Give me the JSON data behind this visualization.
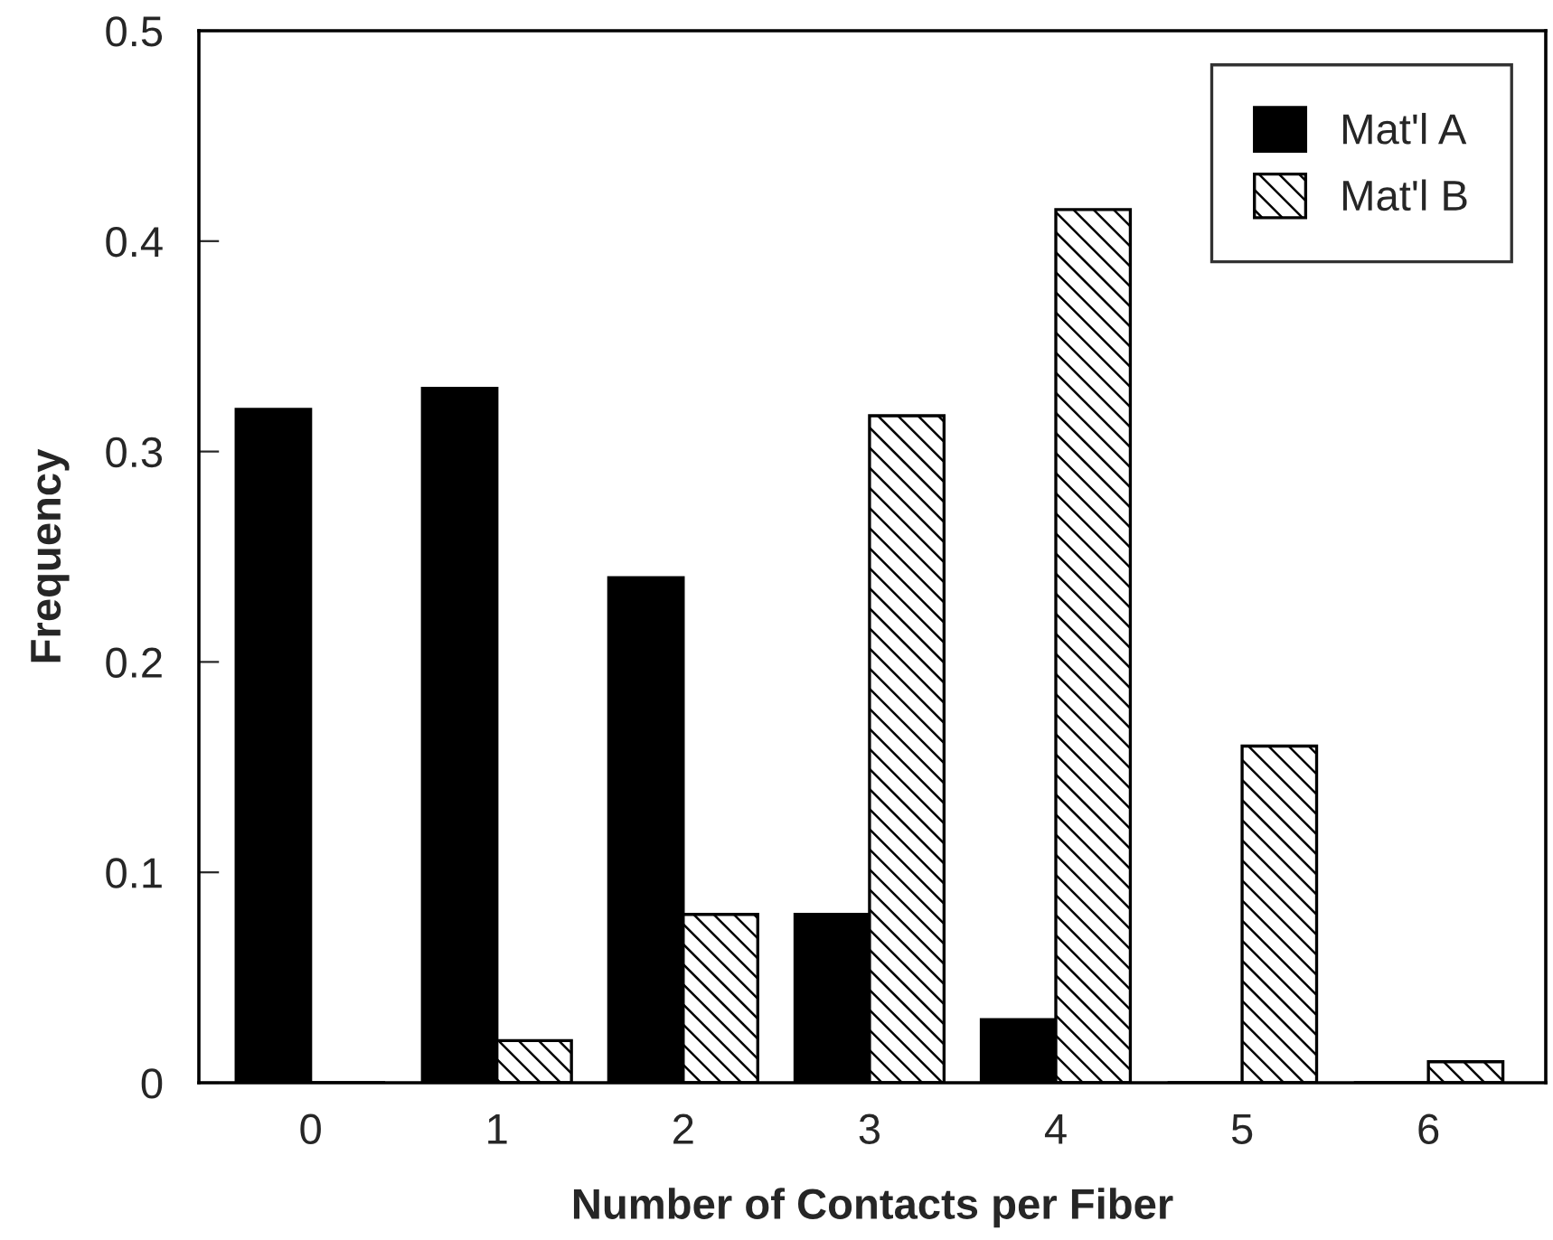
{
  "chart_data": {
    "type": "bar",
    "xlabel": "Number of Contacts per Fiber",
    "ylabel": "Frequency",
    "categories": [
      "0",
      "1",
      "2",
      "3",
      "4",
      "5",
      "6"
    ],
    "series": [
      {
        "name": "Mat'l A",
        "color": "#000000",
        "values": [
          0.32,
          0.33,
          0.24,
          0.08,
          0.03,
          0,
          0
        ]
      },
      {
        "name": "Mat'l B",
        "color": "#000000",
        "values": [
          0,
          0.02,
          0.08,
          0.317,
          0.415,
          0.16,
          0.01
        ]
      }
    ],
    "ylim": [
      0,
      0.5
    ],
    "yticks": [
      {
        "value": 0,
        "label": "0"
      },
      0.1,
      0.2,
      0.3,
      0.4,
      0.5
    ],
    "grid": false,
    "legend": "top right"
  }
}
